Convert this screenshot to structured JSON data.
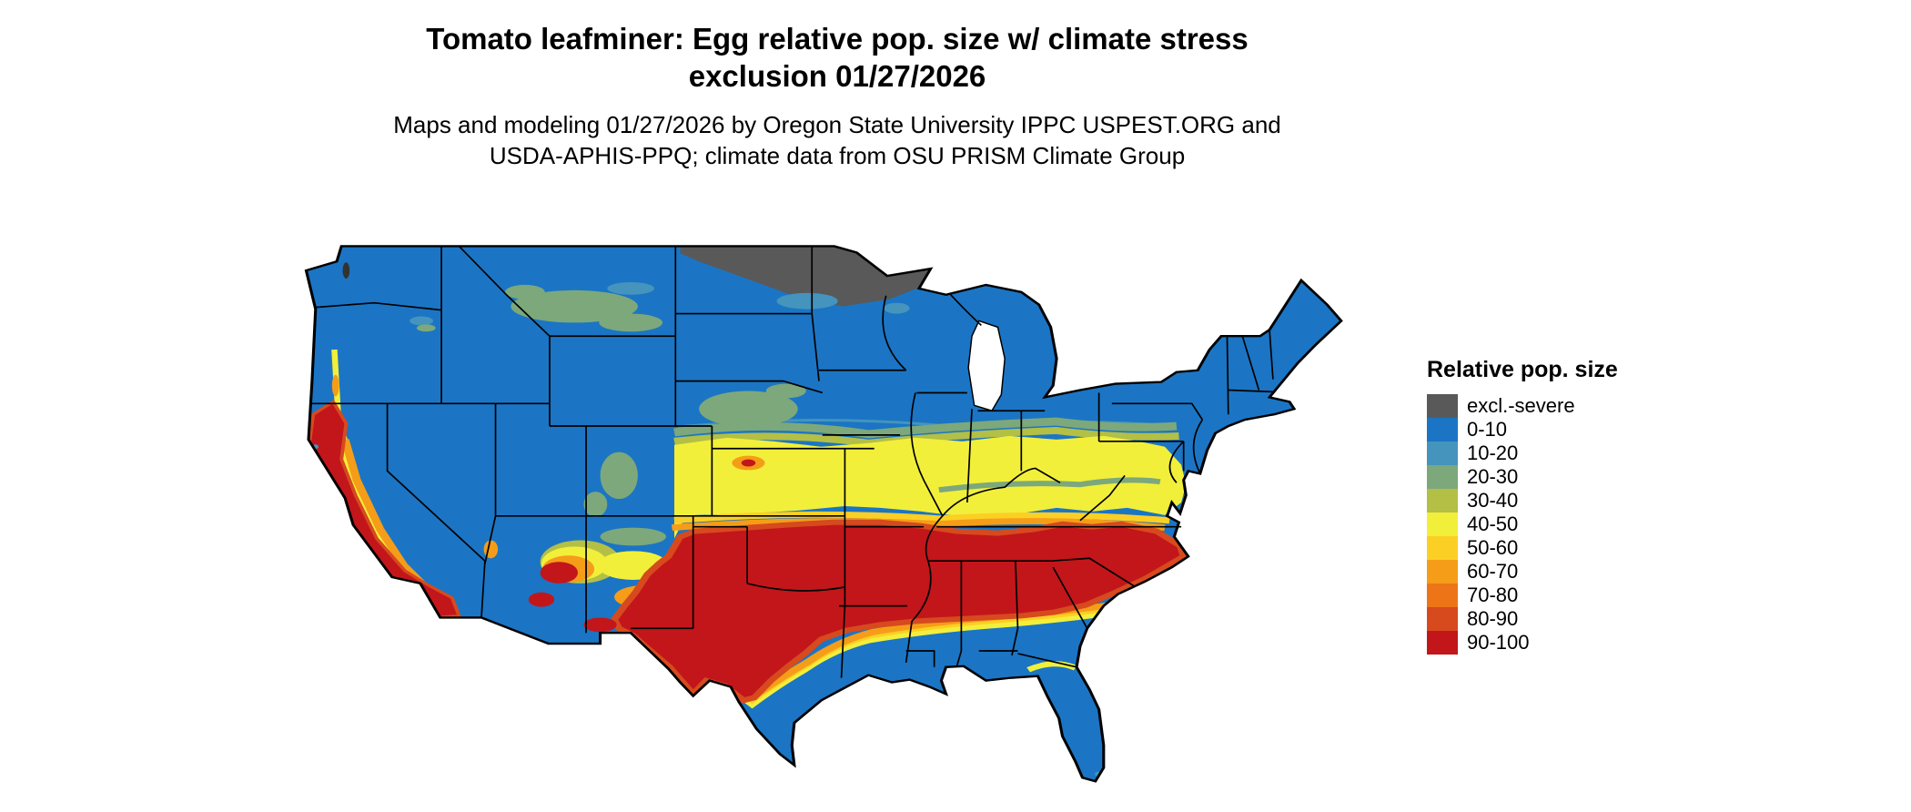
{
  "header": {
    "title_line1": "Tomato leafminer: Egg relative pop. size w/ climate stress",
    "title_line2": "exclusion 01/27/2026",
    "subtitle_line1": "Maps and modeling 01/27/2026 by Oregon State University IPPC USPEST.ORG and",
    "subtitle_line2": "USDA-APHIS-PPQ; climate data from OSU PRISM Climate Group"
  },
  "legend": {
    "title": "Relative pop. size",
    "entries": [
      {
        "label": "excl.-severe",
        "color": "#595959"
      },
      {
        "label": "0-10",
        "color": "#1b75c4"
      },
      {
        "label": "10-20",
        "color": "#4494bd"
      },
      {
        "label": "20-30",
        "color": "#7ca87b"
      },
      {
        "label": "30-40",
        "color": "#b3bf45"
      },
      {
        "label": "40-50",
        "color": "#f2ef3a"
      },
      {
        "label": "50-60",
        "color": "#fccf25"
      },
      {
        "label": "60-70",
        "color": "#f59d18"
      },
      {
        "label": "70-80",
        "color": "#ed7417"
      },
      {
        "label": "80-90",
        "color": "#d64a1e"
      },
      {
        "label": "90-100",
        "color": "#c2161b"
      }
    ]
  },
  "map": {
    "type": "choropleth",
    "region": "Continental United States",
    "date_shown": "01/27/2026",
    "patterns": [
      "excl.-severe (gray) over northern Minnesota and northeastern North Dakota",
      "0-10 (blue) over most of the northern U.S., Rockies, Florida peninsula and Gulf coast strip",
      "20-30 green patches in central Montana and Nebraska/Kansas",
      "yellow 40-60 band across Kansas, Missouri, Kentucky and Virginia",
      "90-100 red across Texas, Oklahoma, the Southeast to the North Carolina coast",
      "red/orange strip along California Central Valley and coast, patches in Arizona and southern New Mexico"
    ]
  }
}
